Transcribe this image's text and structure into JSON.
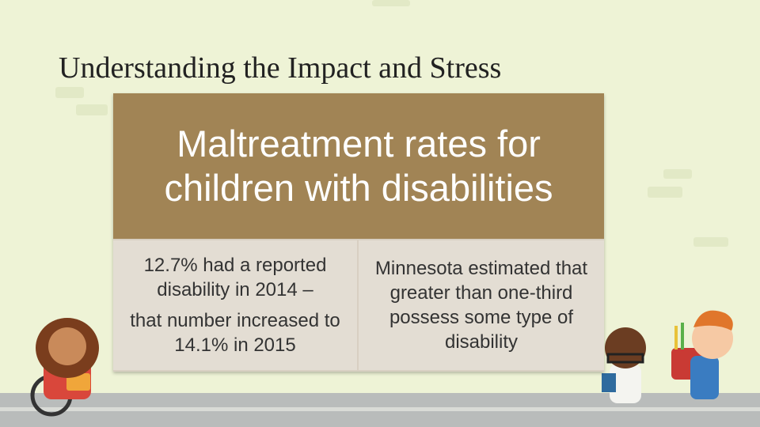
{
  "title": "Understanding the Impact and Stress",
  "card": {
    "heading": "Maltreatment rates for children with disabilities",
    "cells": [
      [
        "12.7% had a reported disability in 2014 –",
        "that number increased to 14.1% in 2015"
      ],
      [
        "Minnesota estimated that greater than one-third possess some type of disability"
      ]
    ]
  }
}
